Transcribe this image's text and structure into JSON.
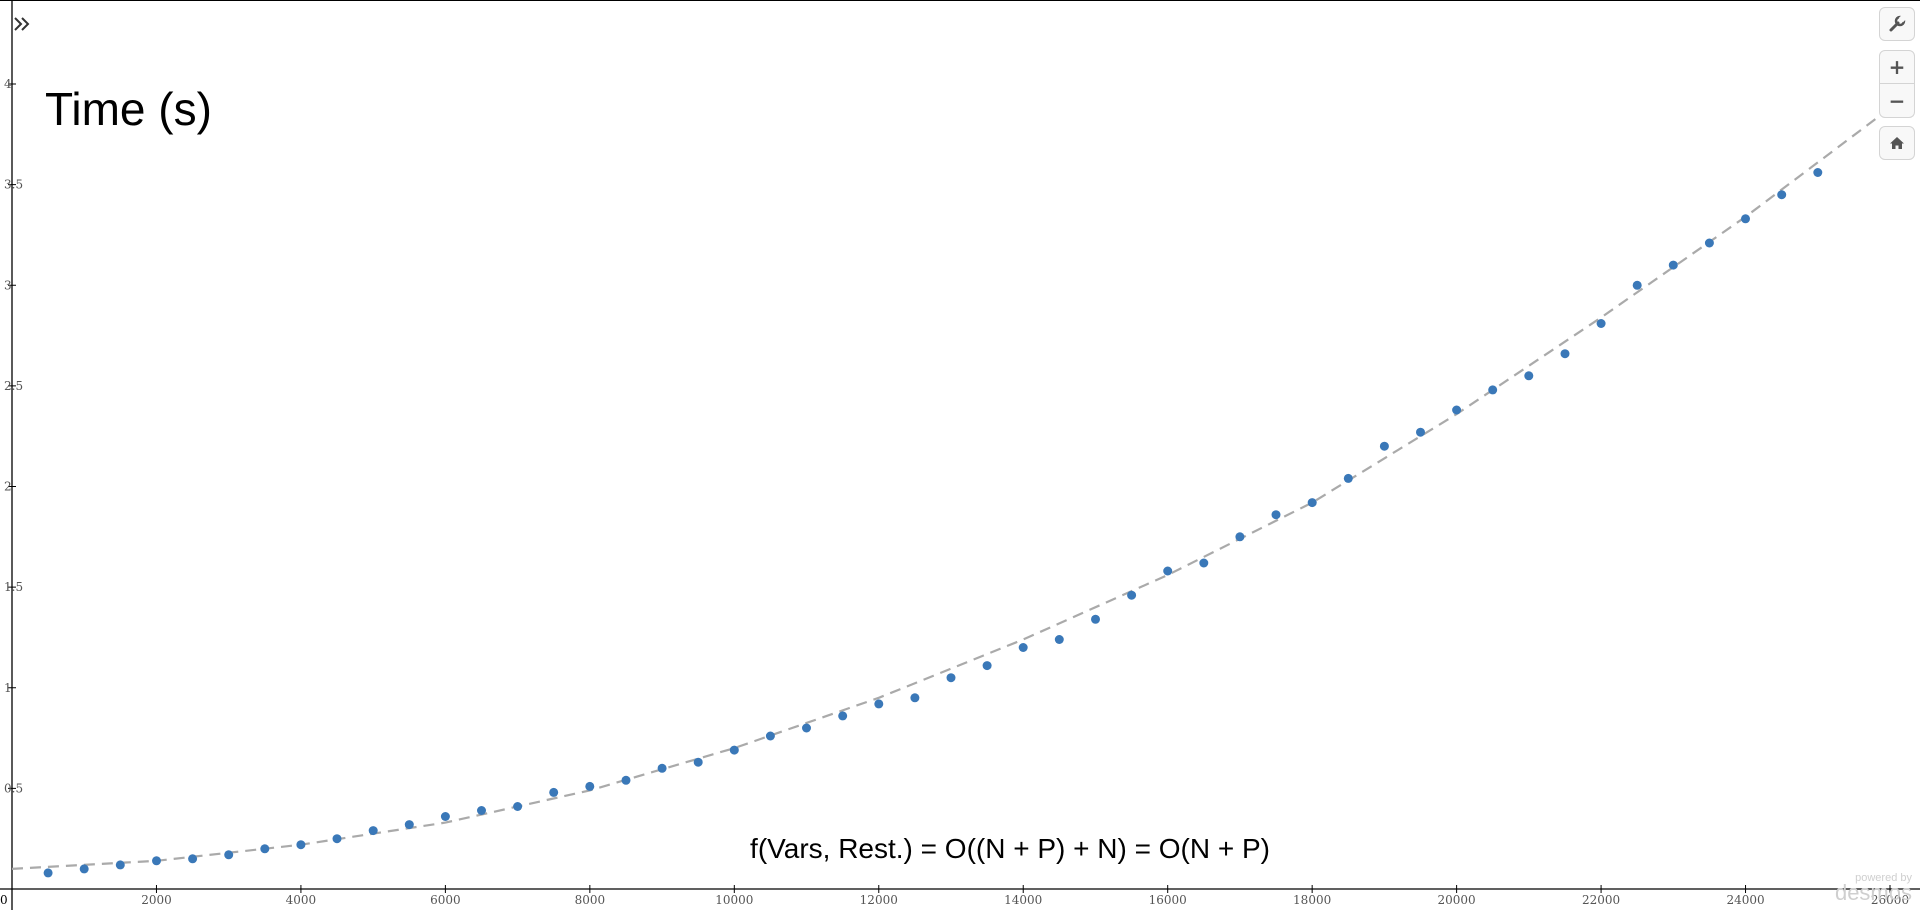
{
  "chart_data": {
    "type": "scatter",
    "title": "",
    "xlabel": "",
    "ylabel": "",
    "xlim": [
      0,
      26000
    ],
    "ylim": [
      0,
      4.2
    ],
    "x_ticks": [
      2000,
      4000,
      6000,
      8000,
      10000,
      12000,
      14000,
      16000,
      18000,
      20000,
      22000,
      24000,
      26000
    ],
    "y_ticks": [
      0.5,
      1,
      1.5,
      2,
      2.5,
      3,
      3.5,
      4
    ],
    "origin_label": "0",
    "grid": false,
    "series": [
      {
        "color": "#3a78b8",
        "x": [
          500,
          1000,
          1500,
          2000,
          2500,
          3000,
          3500,
          4000,
          4500,
          5000,
          5500,
          6000,
          6500,
          7000,
          7500,
          8000,
          8500,
          9000,
          9500,
          10000,
          10500,
          11000,
          11500,
          12000,
          12500,
          13000,
          13500,
          14000,
          14500,
          15000,
          15500,
          16000,
          16500,
          17000,
          17500,
          18000,
          18500,
          19000,
          19500,
          20000,
          20500,
          21000,
          21500,
          22000,
          22500,
          23000,
          23500,
          24000,
          24500,
          25000
        ],
        "y": [
          0.08,
          0.1,
          0.12,
          0.14,
          0.15,
          0.17,
          0.2,
          0.22,
          0.25,
          0.29,
          0.32,
          0.36,
          0.39,
          0.41,
          0.48,
          0.51,
          0.54,
          0.6,
          0.63,
          0.69,
          0.76,
          0.8,
          0.86,
          0.92,
          0.95,
          1.05,
          1.11,
          1.2,
          1.24,
          1.34,
          1.46,
          1.58,
          1.62,
          1.75,
          1.86,
          1.92,
          2.04,
          2.2,
          2.27,
          2.38,
          2.48,
          2.55,
          2.66,
          2.81,
          3.0,
          3.1,
          3.21,
          3.33,
          3.45,
          3.56
        ]
      }
    ],
    "trendline": {
      "style": "dashed",
      "color": "#aaaaaa",
      "x": [
        0,
        2000,
        4000,
        6000,
        8000,
        10000,
        12000,
        14000,
        16000,
        18000,
        20000,
        22000,
        24000,
        26000
      ],
      "y": [
        0.1,
        0.14,
        0.22,
        0.33,
        0.49,
        0.7,
        0.95,
        1.24,
        1.56,
        1.92,
        2.36,
        2.84,
        3.34,
        3.88
      ]
    }
  },
  "annotations": {
    "y_axis_label": "Time (s)",
    "formula": "f(Vars, Rest.) = O((N + P) + N) = O(N + P)"
  },
  "controls": {
    "settings_icon": "wrench-icon",
    "zoom_in_label": "+",
    "zoom_out_label": "−",
    "home_icon": "home-icon",
    "expand_icon": "double-chevron-right-icon"
  },
  "branding": {
    "powered_by": "powered by",
    "brand": "desmos"
  }
}
